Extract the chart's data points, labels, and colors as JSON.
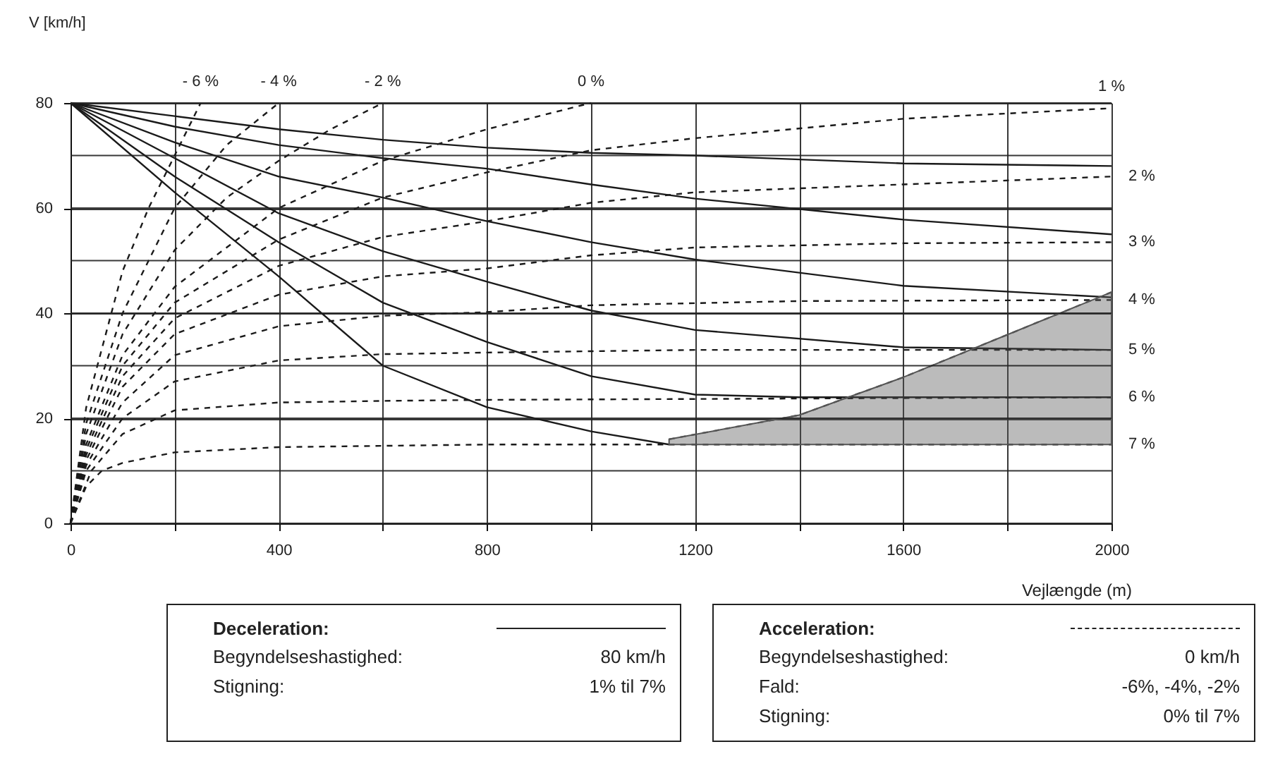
{
  "chart_data": {
    "type": "line",
    "xlabel": "Vejlængde (m)",
    "ylabel": "V [km/h]",
    "xlim": [
      0,
      2000
    ],
    "ylim": [
      0,
      80
    ],
    "xticks": [
      0,
      {
        "value": 200,
        "label": null
      },
      400,
      {
        "value": 600,
        "label": null
      },
      800,
      {
        "value": 1000,
        "label": null
      },
      1200,
      {
        "value": 1400,
        "label": null
      },
      1600,
      {
        "value": 1800,
        "label": null
      },
      2000
    ],
    "yticks": [
      0,
      {
        "value": 10,
        "label": null
      },
      20,
      {
        "value": 30,
        "label": null
      },
      40,
      {
        "value": 50,
        "label": null
      },
      60,
      {
        "value": 70,
        "label": null
      },
      80
    ],
    "grid": true,
    "series": [
      {
        "color": "#1a1a1a",
        "line_style": "solid",
        "x": [
          0,
          200,
          400,
          600,
          800,
          1000,
          1200,
          1600,
          2000
        ],
        "values": [
          80,
          77.5,
          75,
          73,
          71.5,
          70.5,
          70,
          68.5,
          68
        ]
      },
      {
        "color": "#1a1a1a",
        "line_style": "solid",
        "x": [
          0,
          200,
          400,
          600,
          800,
          1000,
          1200,
          1600,
          2000
        ],
        "values": [
          80,
          75.5,
          72,
          69.5,
          67.5,
          64.5,
          61.8,
          57.8,
          55
        ]
      },
      {
        "color": "#1a1a1a",
        "line_style": "solid",
        "x": [
          0,
          200,
          400,
          600,
          800,
          1000,
          1200,
          1600,
          2000
        ],
        "values": [
          80,
          72.5,
          66,
          62,
          57.5,
          53.5,
          50.2,
          45.2,
          43
        ]
      },
      {
        "color": "#1a1a1a",
        "line_style": "solid",
        "x": [
          0,
          200,
          400,
          600,
          800,
          1000,
          1200,
          1600,
          2000
        ],
        "values": [
          80,
          69.5,
          59,
          51.8,
          46,
          40.5,
          36.8,
          33.5,
          33
        ]
      },
      {
        "color": "#1a1a1a",
        "line_style": "solid",
        "x": [
          0,
          200,
          400,
          600,
          800,
          1000,
          1200,
          1400,
          2000
        ],
        "values": [
          80,
          66,
          53.5,
          42,
          34.5,
          28,
          24.5,
          24,
          24
        ]
      },
      {
        "color": "#1a1a1a",
        "line_style": "solid",
        "x": [
          0,
          200,
          400,
          600,
          800,
          1000,
          1150
        ],
        "values": [
          80,
          63,
          47,
          30,
          22.1,
          17.5,
          15
        ]
      },
      {
        "name": "- 6 %",
        "color": "#1a1a1a",
        "line_style": "dashed",
        "x": [
          0,
          30,
          100,
          150,
          200,
          250
        ],
        "values": [
          0,
          22,
          48,
          60,
          70,
          80
        ]
      },
      {
        "name": "- 4 %",
        "color": "#1a1a1a",
        "line_style": "dashed",
        "x": [
          0,
          30,
          100,
          200,
          300,
          400
        ],
        "values": [
          0,
          19,
          40,
          60,
          72,
          80
        ]
      },
      {
        "name": "- 2 %",
        "color": "#1a1a1a",
        "line_style": "dashed",
        "x": [
          0,
          30,
          100,
          200,
          300,
          400,
          500,
          600
        ],
        "values": [
          0,
          17,
          36,
          52,
          62,
          69,
          75,
          80
        ]
      },
      {
        "name": "0 %",
        "color": "#1a1a1a",
        "line_style": "dashed",
        "x": [
          0,
          30,
          100,
          200,
          400,
          600,
          800,
          1000
        ],
        "values": [
          0,
          15,
          32,
          45,
          60,
          69,
          75,
          80
        ]
      },
      {
        "name": "1 %",
        "color": "#1a1a1a",
        "line_style": "dashed",
        "x": [
          0,
          30,
          100,
          200,
          400,
          600,
          800,
          1000,
          1200,
          1600,
          2000
        ],
        "values": [
          0,
          14,
          30,
          42,
          54,
          62,
          66.8,
          71,
          73.3,
          77,
          79
        ]
      },
      {
        "name": "2 %",
        "color": "#1a1a1a",
        "line_style": "dashed",
        "x": [
          0,
          30,
          100,
          200,
          400,
          600,
          800,
          1000,
          1200,
          1600,
          2000
        ],
        "values": [
          0,
          13,
          28,
          39,
          49,
          54.5,
          57.5,
          61,
          63,
          64.5,
          66
        ]
      },
      {
        "name": "3 %",
        "color": "#1a1a1a",
        "line_style": "dashed",
        "x": [
          0,
          30,
          100,
          200,
          400,
          600,
          800,
          1000,
          1200,
          1600,
          2000
        ],
        "values": [
          0,
          12,
          26,
          36,
          43.5,
          47,
          48.5,
          51,
          52.5,
          53.3,
          53.5
        ]
      },
      {
        "name": "4 %",
        "color": "#1a1a1a",
        "line_style": "dashed",
        "x": [
          0,
          30,
          100,
          200,
          400,
          600,
          800,
          1000,
          1400,
          2000
        ],
        "values": [
          0,
          11,
          23,
          32,
          37.5,
          39.5,
          40.2,
          41.5,
          42.3,
          42.5
        ]
      },
      {
        "name": "5 %",
        "color": "#1a1a1a",
        "line_style": "dashed",
        "x": [
          0,
          30,
          100,
          200,
          400,
          600,
          800,
          1200,
          2000
        ],
        "values": [
          0,
          10,
          20,
          27,
          31,
          32.2,
          32.5,
          33,
          33
        ]
      },
      {
        "name": "6 %",
        "color": "#1a1a1a",
        "line_style": "dashed",
        "x": [
          0,
          40,
          100,
          200,
          400,
          600,
          800,
          2000
        ],
        "values": [
          0,
          10,
          17,
          21.5,
          23,
          23.3,
          23.5,
          24
        ]
      },
      {
        "name": "7 %",
        "color": "#1a1a1a",
        "line_style": "dashed",
        "x": [
          0,
          30,
          60,
          100,
          200,
          400,
          800,
          2000
        ],
        "values": [
          0,
          7,
          10,
          11.5,
          13.5,
          14.5,
          15,
          15
        ]
      },
      {
        "color": "#555555",
        "line_style": "dashed",
        "x": [
          1150,
          1400,
          1600,
          1800,
          2000
        ],
        "values": [
          16,
          20.6,
          27.8,
          35.9,
          44
        ],
        "lower": [
          15,
          15,
          15,
          15,
          15
        ],
        "upper": [
          16,
          20.6,
          27.8,
          35.9,
          44
        ]
      }
    ],
    "annotations": [
      "Deceleration:",
      "Begyndelseshastighed:",
      "80 km/h",
      "Stigning:",
      "1% til 7%",
      "Acceleration:",
      "Begyndelseshastighed:",
      "0 km/h",
      "Fald:",
      "-6%, -4%, -2%",
      "Stigning:",
      "0% til 7%"
    ]
  }
}
